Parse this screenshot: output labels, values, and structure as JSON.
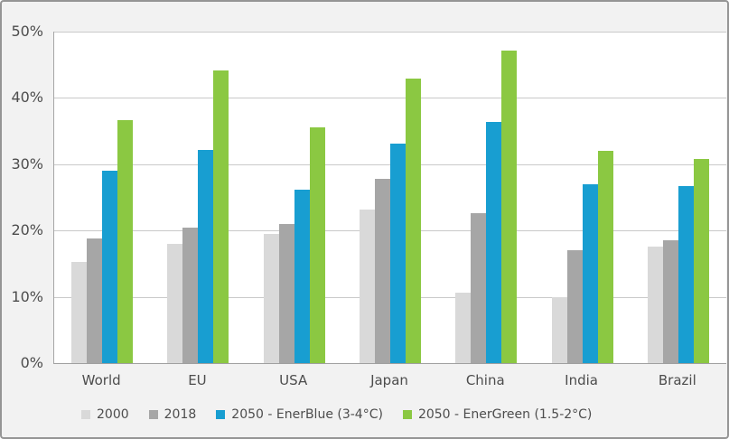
{
  "chart_data": {
    "type": "bar",
    "title": "",
    "xlabel": "",
    "ylabel": "",
    "ylim": [
      0,
      50
    ],
    "grid": true,
    "legend_position": "bottom",
    "y_ticks": [
      "0%",
      "10%",
      "20%",
      "30%",
      "40%",
      "50%"
    ],
    "y_tick_values": [
      0,
      10,
      20,
      30,
      40,
      50
    ],
    "categories": [
      "World",
      "EU",
      "USA",
      "Japan",
      "China",
      "India",
      "Brazil"
    ],
    "series": [
      {
        "name": "2000",
        "color": "#d9d9d9",
        "values": [
          15.2,
          18.0,
          19.5,
          23.1,
          10.6,
          10.0,
          17.6
        ]
      },
      {
        "name": "2018",
        "color": "#a6a6a6",
        "values": [
          18.8,
          20.5,
          21.0,
          27.8,
          22.6,
          17.0,
          18.5
        ]
      },
      {
        "name": "2050 - EnerBlue (3-4°C)",
        "color": "#189ed1",
        "values": [
          29.0,
          32.2,
          26.2,
          33.1,
          36.4,
          27.0,
          26.7
        ]
      },
      {
        "name": "2050 - EnerGreen (1.5-2°C)",
        "color": "#8bc842",
        "values": [
          36.7,
          44.2,
          35.5,
          42.9,
          47.1,
          32.0,
          30.8
        ]
      }
    ]
  },
  "colors": {
    "background": "#f2f2f2",
    "plot_background": "#ffffff",
    "frame_border": "#959595",
    "gridline": "#c9c9c9",
    "axis_line": "#a0a0a0",
    "text": "#4d4d4d"
  }
}
